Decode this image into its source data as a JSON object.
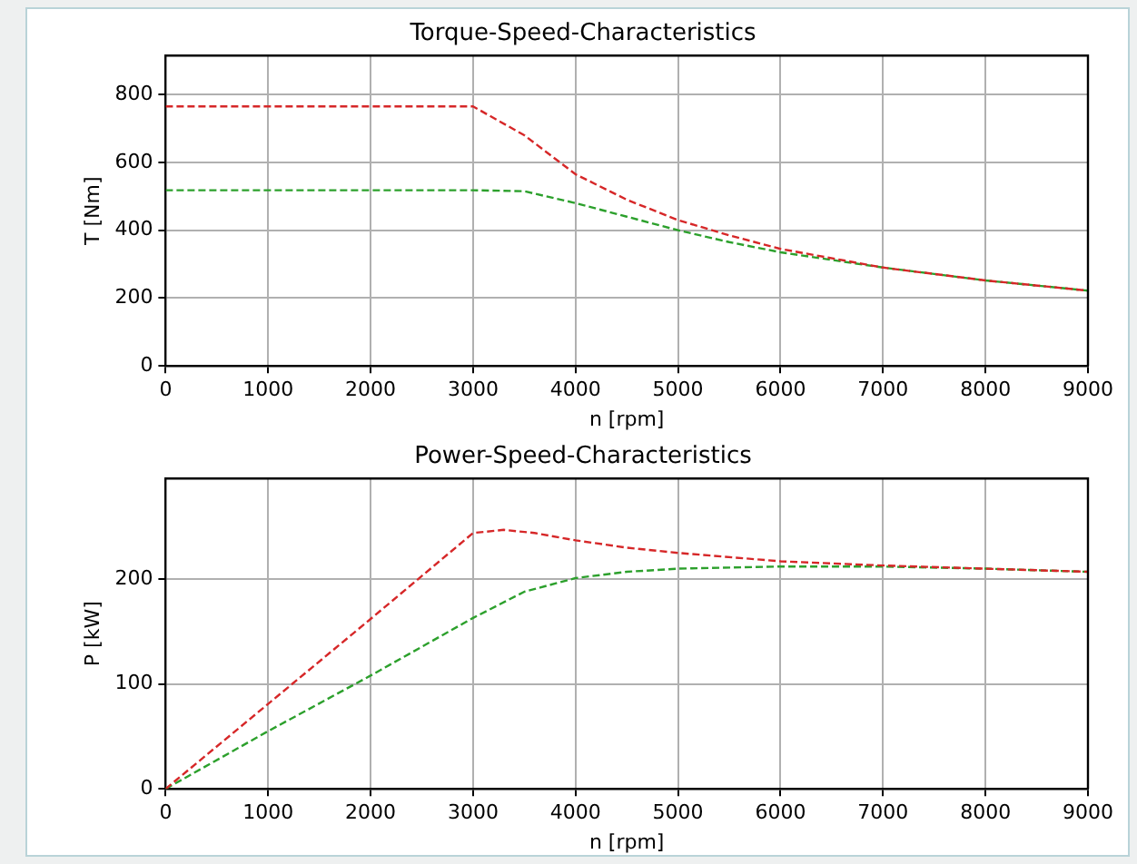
{
  "chart_data": [
    {
      "type": "line",
      "title": "Torque-Speed-Characteristics",
      "xlabel": "n [rpm]",
      "ylabel": "T [Nm]",
      "xlim": [
        0,
        9000
      ],
      "xticks": [
        0,
        1000,
        2000,
        3000,
        4000,
        5000,
        6000,
        7000,
        8000,
        9000
      ],
      "ylim": [
        0,
        915
      ],
      "yticks": [
        0,
        200,
        400,
        600,
        800
      ],
      "grid": true,
      "line_style": "dashed",
      "marker": "none",
      "series": [
        {
          "color": "#d62728",
          "x": [
            0,
            1000,
            2000,
            3000,
            3500,
            4000,
            4500,
            5000,
            5500,
            6000,
            7000,
            8000,
            9000
          ],
          "values": [
            765,
            765,
            765,
            765,
            680,
            565,
            490,
            430,
            385,
            345,
            290,
            252,
            222
          ]
        },
        {
          "color": "#2ca02c",
          "x": [
            0,
            1000,
            2000,
            3000,
            3500,
            4000,
            4500,
            5000,
            5500,
            6000,
            7000,
            8000,
            9000
          ],
          "values": [
            518,
            518,
            518,
            518,
            515,
            480,
            440,
            400,
            365,
            335,
            290,
            252,
            222
          ]
        }
      ]
    },
    {
      "type": "line",
      "title": "Power-Speed-Characteristics",
      "xlabel": "n [rpm]",
      "ylabel": "P [kW]",
      "xlim": [
        0,
        9000
      ],
      "xticks": [
        0,
        1000,
        2000,
        3000,
        4000,
        5000,
        6000,
        7000,
        8000,
        9000
      ],
      "ylim": [
        0,
        296
      ],
      "yticks": [
        0,
        100,
        200
      ],
      "grid": true,
      "line_style": "dashed",
      "marker": "none",
      "series": [
        {
          "color": "#d62728",
          "x": [
            0,
            1000,
            2000,
            3000,
            3300,
            3600,
            4000,
            4500,
            5000,
            6000,
            7000,
            8000,
            9000
          ],
          "values": [
            0,
            81,
            162,
            244,
            247,
            244,
            237,
            230,
            225,
            217,
            213,
            210,
            207
          ]
        },
        {
          "color": "#2ca02c",
          "x": [
            0,
            1000,
            2000,
            3000,
            3500,
            4000,
            4500,
            5000,
            6000,
            7000,
            8000,
            9000
          ],
          "values": [
            0,
            55,
            108,
            163,
            188,
            201,
            207,
            210,
            212,
            212,
            210,
            207
          ]
        }
      ]
    }
  ]
}
